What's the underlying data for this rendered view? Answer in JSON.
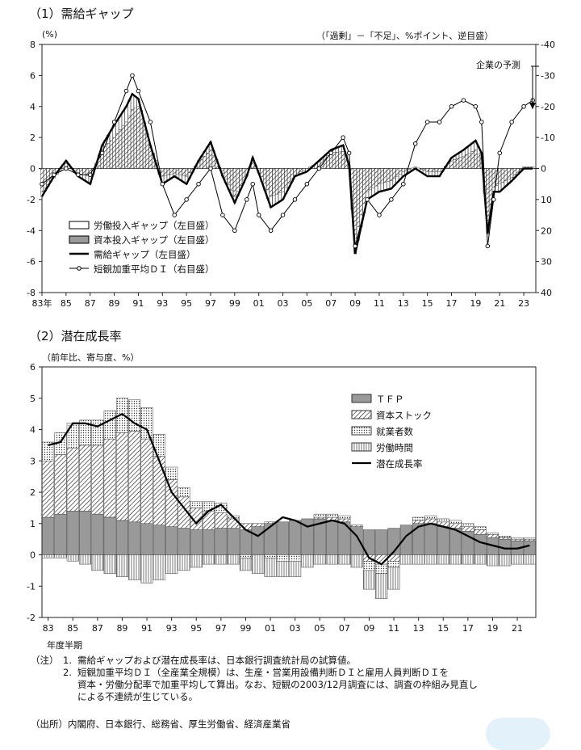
{
  "chart1": {
    "title": "（1）需給ギャップ",
    "unit_left": "(%)",
    "unit_right": "（「過剰」－「不足」、%ポイント、逆目盛）",
    "forecast_label": "企業の予測",
    "left_ticks": [
      "8",
      "6",
      "4",
      "2",
      "0",
      "-2",
      "-4",
      "-6",
      "-8"
    ],
    "right_ticks": [
      "-40",
      "-30",
      "-20",
      "-10",
      "0",
      "10",
      "20",
      "30",
      "40"
    ],
    "x_ticks": [
      "83年",
      "85",
      "87",
      "89",
      "91",
      "93",
      "95",
      "97",
      "99",
      "01",
      "03",
      "05",
      "07",
      "09",
      "11",
      "13",
      "15",
      "17",
      "19",
      "21",
      "23"
    ],
    "legend": [
      "労働投入ギャップ（左目盛）",
      "資本投入ギャップ（左目盛）",
      "需給ギャップ（左目盛）",
      "短観加重平均ＤＩ（右目盛）"
    ]
  },
  "chart2": {
    "title": "（2）潜在成長率",
    "unit_label": "（前年比、寄与度、%）",
    "y_ticks": [
      "6",
      "5",
      "4",
      "3",
      "2",
      "1",
      "0",
      "-1",
      "-2"
    ],
    "x_ticks": [
      "83",
      "85",
      "87",
      "89",
      "91",
      "93",
      "95",
      "97",
      "99",
      "01",
      "03",
      "05",
      "07",
      "09",
      "11",
      "13",
      "15",
      "17",
      "19",
      "21"
    ],
    "x_caption": "年度半期",
    "legend": [
      "ＴＦＰ",
      "資本ストック",
      "就業者数",
      "労働時間",
      "潜在成長率"
    ]
  },
  "chart_data": [
    {
      "type": "bar",
      "title": "（1）需給ギャップ",
      "ylabel": "(%)",
      "y2label": "（「過剰」－「不足」、%ポイント、逆目盛）",
      "ylim": [
        -8,
        8
      ],
      "y2lim": [
        40,
        -40
      ],
      "x_start": 1983.0,
      "x_end": 2024.0,
      "series": [
        {
          "name": "需給ギャップ（左目盛）",
          "kind": "line",
          "x": [
            1983.0,
            1984.0,
            1985.0,
            1986.0,
            1987.0,
            1988.0,
            1989.0,
            1990.0,
            1990.5,
            1991.0,
            1992.0,
            1993.0,
            1994.0,
            1995.0,
            1996.0,
            1997.0,
            1998.0,
            1999.0,
            2000.0,
            2000.5,
            2001.0,
            2002.0,
            2003.0,
            2004.0,
            2005.0,
            2006.0,
            2007.0,
            2008.0,
            2008.5,
            2009.0,
            2010.0,
            2011.0,
            2012.0,
            2013.0,
            2014.0,
            2015.0,
            2016.0,
            2017.0,
            2018.0,
            2019.0,
            2019.5,
            2020.0,
            2020.5,
            2021.0,
            2022.0,
            2023.0,
            2023.75
          ],
          "values": [
            -1.8,
            -0.5,
            0.5,
            -0.5,
            -1.0,
            1.5,
            2.8,
            4.0,
            4.8,
            4.5,
            1.5,
            -1.0,
            -0.5,
            -1.0,
            0.5,
            1.7,
            -0.5,
            -2.2,
            -0.5,
            0.7,
            -0.3,
            -2.5,
            -2.0,
            -0.5,
            -0.2,
            0.5,
            1.2,
            1.5,
            0.2,
            -5.5,
            -2.0,
            -1.5,
            -1.3,
            -0.5,
            0.0,
            -0.5,
            -0.5,
            0.7,
            1.2,
            1.8,
            1.0,
            -4.2,
            -1.5,
            -1.5,
            -0.8,
            0.0,
            0.0
          ]
        },
        {
          "name": "資本投入ギャップ（左目盛）",
          "kind": "bar",
          "x": [
            1983.0,
            1984.0,
            1985.0,
            1986.0,
            1987.0,
            1988.0,
            1989.0,
            1990.0,
            1990.5,
            1991.0,
            1992.0,
            1993.0,
            1994.0,
            1995.0,
            1996.0,
            1997.0,
            1998.0,
            1999.0,
            2000.0,
            2000.5,
            2001.0,
            2002.0,
            2003.0,
            2004.0,
            2005.0,
            2006.0,
            2007.0,
            2008.0,
            2008.5,
            2009.0,
            2010.0,
            2011.0,
            2012.0,
            2013.0,
            2014.0,
            2015.0,
            2016.0,
            2017.0,
            2018.0,
            2019.0,
            2019.5,
            2020.0,
            2020.5,
            2021.0,
            2022.0,
            2023.0,
            2023.75
          ],
          "values": [
            -1.5,
            -0.6,
            0.3,
            -0.3,
            -0.5,
            1.2,
            2.0,
            3.0,
            3.8,
            4.0,
            1.5,
            -0.5,
            -0.3,
            -0.5,
            0.4,
            1.2,
            -0.3,
            -1.8,
            -0.4,
            0.5,
            -0.1,
            -1.8,
            -1.5,
            -0.4,
            0.0,
            0.4,
            1.0,
            1.1,
            0.0,
            -4.5,
            -1.5,
            -1.0,
            -0.8,
            -0.2,
            0.1,
            -0.2,
            -0.2,
            0.5,
            0.8,
            1.2,
            0.7,
            -3.5,
            -1.2,
            -1.0,
            -0.6,
            0.1,
            0.1
          ]
        },
        {
          "name": "労働投入ギャップ（左目盛）",
          "kind": "bar",
          "x": [
            1983.0,
            1984.0,
            1985.0,
            1986.0,
            1987.0,
            1988.0,
            1989.0,
            1990.0,
            1990.5,
            1991.0,
            1992.0,
            1993.0,
            1994.0,
            1995.0,
            1996.0,
            1997.0,
            1998.0,
            1999.0,
            2000.0,
            2000.5,
            2001.0,
            2002.0,
            2003.0,
            2004.0,
            2005.0,
            2006.0,
            2007.0,
            2008.0,
            2008.5,
            2009.0,
            2010.0,
            2011.0,
            2012.0,
            2013.0,
            2014.0,
            2015.0,
            2016.0,
            2017.0,
            2018.0,
            2019.0,
            2019.5,
            2020.0,
            2020.5,
            2021.0,
            2022.0,
            2023.0,
            2023.75
          ],
          "values": [
            -0.3,
            0.1,
            0.2,
            -0.2,
            -0.5,
            0.3,
            0.8,
            1.0,
            1.0,
            0.5,
            0.0,
            -0.5,
            -0.2,
            -0.5,
            0.1,
            0.5,
            -0.2,
            -0.4,
            -0.1,
            0.2,
            -0.2,
            -0.7,
            -0.5,
            -0.1,
            -0.2,
            0.1,
            0.2,
            0.4,
            0.2,
            -1.0,
            -0.5,
            -0.5,
            -0.5,
            -0.3,
            -0.1,
            -0.3,
            -0.3,
            0.2,
            0.4,
            0.6,
            0.3,
            -0.7,
            -0.3,
            -0.5,
            -0.2,
            -0.1,
            -0.1
          ]
        },
        {
          "name": "短観加重平均ＤＩ（右目盛）",
          "kind": "line",
          "axis": "right",
          "x": [
            1983.0,
            1984.0,
            1985.0,
            1986.0,
            1987.0,
            1988.0,
            1989.0,
            1990.0,
            1990.5,
            1991.0,
            1992.0,
            1993.0,
            1994.0,
            1995.0,
            1996.0,
            1997.0,
            1998.0,
            1999.0,
            2000.0,
            2000.5,
            2001.0,
            2002.0,
            2003.0,
            2004.0,
            2005.0,
            2006.0,
            2007.0,
            2008.0,
            2008.5,
            2009.0,
            2010.0,
            2011.0,
            2012.0,
            2013.0,
            2014.0,
            2015.0,
            2016.0,
            2017.0,
            2018.0,
            2019.0,
            2019.5,
            2020.0,
            2020.5,
            2021.0,
            2022.0,
            2023.0,
            2023.75
          ],
          "values": [
            5,
            2,
            0,
            2,
            2,
            -5,
            -15,
            -25,
            -30,
            -25,
            -15,
            5,
            15,
            10,
            5,
            0,
            15,
            20,
            10,
            5,
            15,
            20,
            15,
            10,
            5,
            0,
            -5,
            -10,
            -5,
            25,
            10,
            15,
            10,
            5,
            -8,
            -15,
            -15,
            -20,
            -22,
            -20,
            -15,
            25,
            10,
            -5,
            -15,
            -20,
            -22
          ]
        }
      ]
    },
    {
      "type": "bar",
      "title": "（2）潜在成長率",
      "ylabel": "（前年比、寄与度、%）",
      "xlabel": "年度半期",
      "ylim": [
        -2,
        6
      ],
      "x_start": 1983.0,
      "x_end": 2023.0,
      "x": [
        1983,
        1984,
        1985,
        1986,
        1987,
        1988,
        1989,
        1990,
        1991,
        1992,
        1993,
        1994,
        1995,
        1996,
        1997,
        1998,
        1999,
        2000,
        2001,
        2002,
        2003,
        2004,
        2005,
        2006,
        2007,
        2008,
        2009,
        2010,
        2011,
        2012,
        2013,
        2014,
        2015,
        2016,
        2017,
        2018,
        2019,
        2020,
        2021,
        2022
      ],
      "series": [
        {
          "name": "ＴＦＰ",
          "values": [
            1.2,
            1.3,
            1.4,
            1.4,
            1.3,
            1.2,
            1.1,
            1.05,
            1.0,
            0.95,
            0.9,
            0.85,
            0.8,
            0.8,
            0.85,
            0.85,
            0.8,
            0.9,
            1.0,
            1.05,
            1.1,
            1.15,
            1.15,
            1.1,
            1.05,
            0.9,
            0.8,
            0.8,
            0.85,
            0.95,
            1.0,
            1.0,
            0.9,
            0.85,
            0.75,
            0.65,
            0.55,
            0.5,
            0.45,
            0.45
          ]
        },
        {
          "name": "資本ストック",
          "values": [
            1.8,
            1.9,
            2.0,
            2.1,
            2.2,
            2.5,
            2.8,
            2.9,
            2.7,
            2.2,
            1.5,
            1.0,
            0.7,
            0.6,
            0.5,
            0.3,
            0.2,
            0.1,
            0.05,
            0.0,
            0.0,
            0.0,
            0.05,
            0.1,
            0.1,
            0.05,
            -0.2,
            -0.3,
            -0.2,
            0.0,
            0.1,
            0.15,
            0.15,
            0.15,
            0.15,
            0.15,
            0.1,
            0.05,
            0.05,
            0.05
          ]
        },
        {
          "name": "就業者数",
          "values": [
            0.6,
            0.7,
            0.8,
            0.8,
            0.8,
            0.9,
            1.1,
            1.0,
            1.0,
            0.7,
            0.4,
            0.3,
            0.2,
            0.3,
            0.3,
            0.1,
            -0.1,
            0.0,
            -0.1,
            -0.2,
            -0.2,
            0.0,
            0.1,
            0.1,
            0.1,
            0.0,
            -0.3,
            -0.3,
            -0.2,
            0.0,
            0.1,
            0.1,
            0.1,
            0.1,
            0.1,
            0.1,
            0.05,
            0.05,
            0.05,
            0.05
          ]
        },
        {
          "name": "労働時間",
          "values": [
            -0.1,
            -0.1,
            -0.2,
            -0.3,
            -0.5,
            -0.6,
            -0.7,
            -0.8,
            -0.9,
            -0.8,
            -0.6,
            -0.5,
            -0.4,
            -0.3,
            -0.3,
            -0.3,
            -0.4,
            -0.6,
            -0.6,
            -0.5,
            -0.5,
            -0.4,
            -0.3,
            -0.3,
            -0.3,
            -0.4,
            -0.6,
            -0.8,
            -0.7,
            -0.3,
            -0.3,
            -0.3,
            -0.3,
            -0.3,
            -0.3,
            -0.3,
            -0.35,
            -0.35,
            -0.3,
            -0.3
          ]
        },
        {
          "name": "潜在成長率",
          "kind": "line",
          "values": [
            3.5,
            3.6,
            4.2,
            4.2,
            4.1,
            4.3,
            4.5,
            4.2,
            4.0,
            3.0,
            2.0,
            1.5,
            1.0,
            1.4,
            1.6,
            1.2,
            0.8,
            0.6,
            0.9,
            1.2,
            1.1,
            0.9,
            1.0,
            1.1,
            1.0,
            0.6,
            -0.1,
            -0.3,
            0.1,
            0.6,
            0.9,
            1.0,
            0.9,
            0.8,
            0.6,
            0.4,
            0.3,
            0.2,
            0.2,
            0.3
          ]
        }
      ]
    }
  ],
  "notes": {
    "note_label": "（注）",
    "note1_num": "1.",
    "note1": "需給ギャップおよび潜在成長率は、日本銀行調査統計局の試算値。",
    "note2_num": "2.",
    "note2_line1": "短観加重平均ＤＩ（全産業全規模）は、生産・営業用設備判断ＤＩと雇用人員判断ＤＩを",
    "note2_line2": "資本・労働分配率で加重平均して算出。なお、短観の2003/12月調査には、調査の枠組み見直し",
    "note2_line3": "による不連続が生じている。",
    "source": "（出所）内閣府、日本銀行、総務省、厚生労働省、経済産業省"
  }
}
